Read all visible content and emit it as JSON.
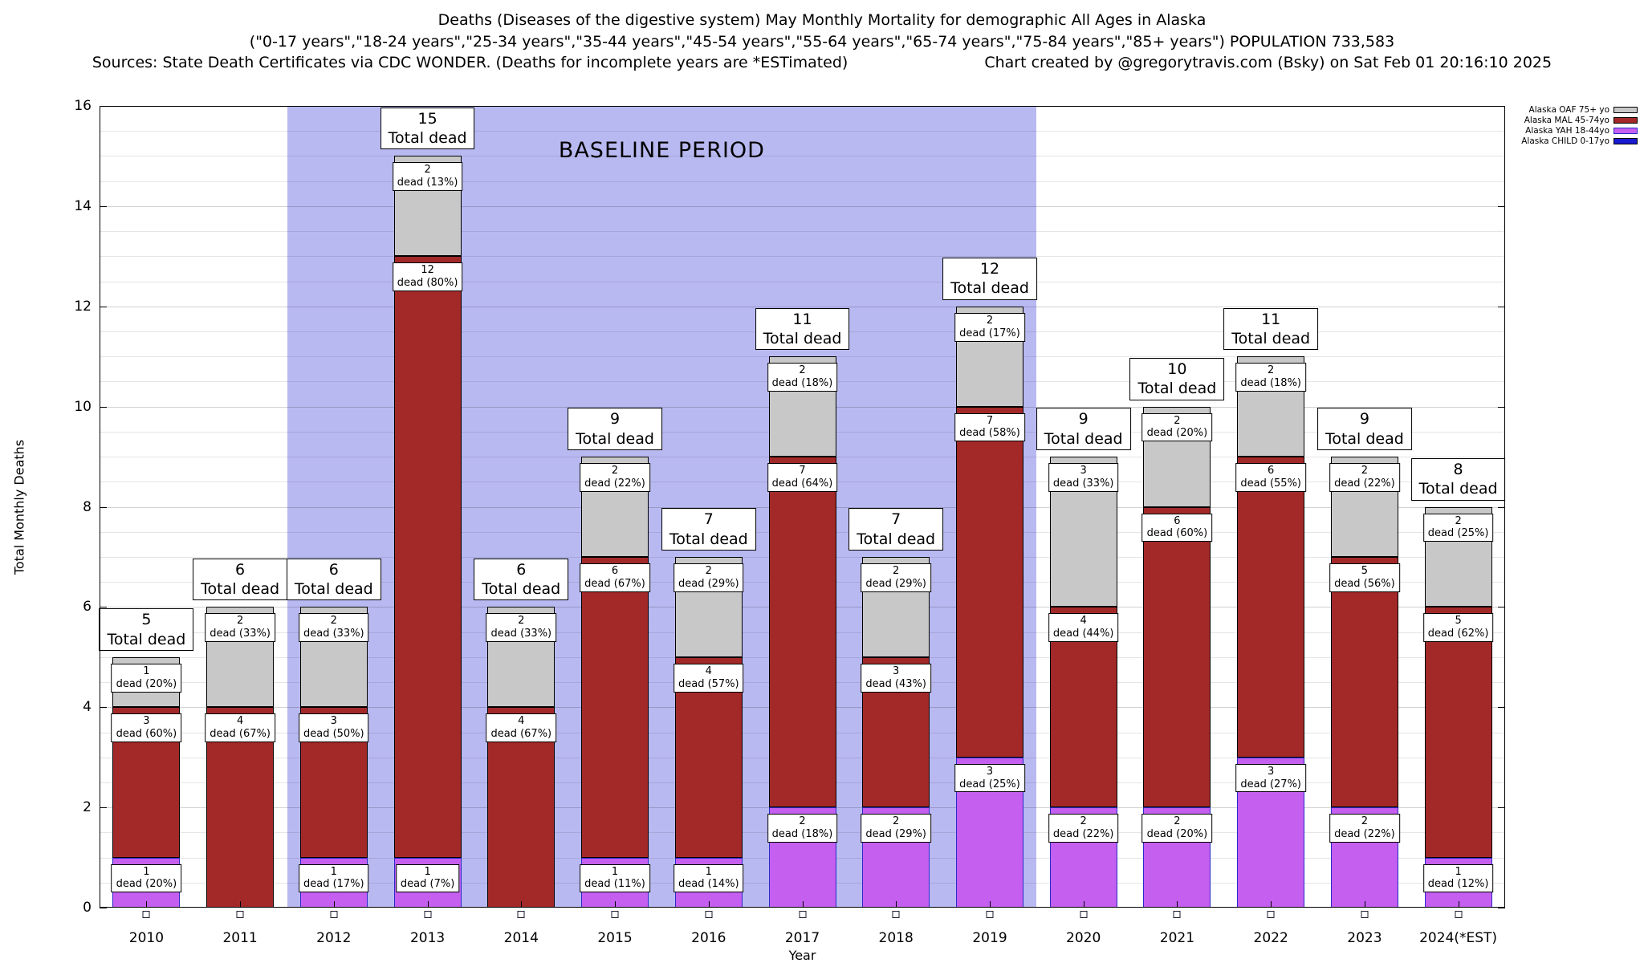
{
  "titles": {
    "line1": "Deaths (Diseases of the digestive system) May Monthly Mortality for demographic All Ages in Alaska",
    "line2": "(\"0-17 years\",\"18-24 years\",\"25-34 years\",\"35-44 years\",\"45-54 years\",\"55-64 years\",\"65-74 years\",\"75-84 years\",\"85+ years\") POPULATION 733,583",
    "sources": "Sources: State Death Certificates via CDC WONDER. (Deaths for incomplete years are *ESTimated)",
    "credit": "Chart created by @gregorytravis.com (Bsky) on Sat Feb 01 20:16:10 2025"
  },
  "legend": [
    {
      "short": "oaf",
      "label": "Alaska OAF 75+ yo",
      "color": "#c8c8c8",
      "border": "#000000"
    },
    {
      "short": "mal",
      "label": "Alaska MAL 45-74yo",
      "color": "#a32929",
      "border": "#000000"
    },
    {
      "short": "yah",
      "label": "Alaska YAH 18-44yo",
      "color": "#c45ff0",
      "border": "#2a2ac8"
    },
    {
      "short": "child",
      "label": "Alaska CHILD 0-17yo",
      "color": "#1a1ad2",
      "border": "#000000"
    }
  ],
  "baseline_region": {
    "label": "BASELINE PERIOD",
    "start_category": "2012",
    "end_category": "2019",
    "color": "#b9b9f2"
  },
  "chart_data": {
    "type": "bar",
    "stacked": true,
    "title": "Deaths (Diseases of the digestive system) May Monthly Mortality for demographic All Ages in Alaska",
    "categories": [
      "2010",
      "2011",
      "2012",
      "2013",
      "2014",
      "2015",
      "2016",
      "2017",
      "2018",
      "2019",
      "2020",
      "2021",
      "2022",
      "2023",
      "2024(*EST)"
    ],
    "series": [
      {
        "short": "yah",
        "name": "Alaska YAH 18-44yo",
        "color": "#c45ff0",
        "border": "#2a2ac8",
        "values": [
          1,
          0,
          1,
          1,
          0,
          1,
          1,
          2,
          2,
          3,
          2,
          2,
          3,
          2,
          1
        ],
        "pct": [
          20,
          null,
          17,
          7,
          null,
          11,
          14,
          18,
          29,
          25,
          22,
          20,
          27,
          22,
          12
        ]
      },
      {
        "short": "mal",
        "name": "Alaska MAL 45-74yo",
        "color": "#a32929",
        "border": "#000000",
        "values": [
          3,
          4,
          3,
          12,
          4,
          6,
          4,
          7,
          3,
          7,
          4,
          6,
          6,
          5,
          5
        ],
        "pct": [
          60,
          67,
          50,
          80,
          67,
          67,
          57,
          64,
          43,
          58,
          44,
          60,
          55,
          56,
          62
        ]
      },
      {
        "short": "oaf",
        "name": "Alaska OAF 75+ yo",
        "color": "#c8c8c8",
        "border": "#000000",
        "values": [
          1,
          2,
          2,
          2,
          2,
          2,
          2,
          2,
          2,
          2,
          3,
          2,
          2,
          2,
          2
        ],
        "pct": [
          20,
          33,
          33,
          13,
          33,
          22,
          29,
          18,
          29,
          17,
          33,
          20,
          18,
          22,
          25
        ]
      },
      {
        "short": "child",
        "name": "Alaska CHILD 0-17yo",
        "color": "#1a1ad2",
        "border": "#000000",
        "zero_marker": true,
        "values": [
          0,
          0,
          0,
          0,
          0,
          0,
          0,
          0,
          0,
          0,
          0,
          0,
          0,
          0,
          0
        ],
        "pct": [
          null,
          null,
          null,
          null,
          null,
          null,
          null,
          null,
          null,
          null,
          null,
          null,
          null,
          null,
          null
        ]
      }
    ],
    "totals": [
      5,
      6,
      6,
      15,
      6,
      9,
      7,
      11,
      7,
      12,
      9,
      10,
      11,
      9,
      8
    ],
    "total_label_suffix": "Total dead",
    "segment_label_prefix": "dead",
    "ylabel": "Total Monthly Deaths",
    "xlabel": "Year",
    "ylim": [
      0,
      16
    ],
    "yticks": [
      0,
      2,
      4,
      6,
      8,
      10,
      12,
      14,
      16
    ],
    "grid": true,
    "legend_position": "top-right"
  }
}
